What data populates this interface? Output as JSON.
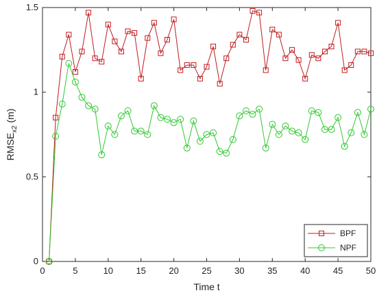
{
  "chart_data": {
    "type": "line",
    "xlabel": "Time t",
    "ylabel": {
      "base": "RMSE",
      "sub": "x2",
      "unit": " (m)"
    },
    "xlim": [
      0,
      50
    ],
    "ylim": [
      0,
      1.5
    ],
    "x_ticks": [
      0,
      5,
      10,
      15,
      20,
      25,
      30,
      35,
      40,
      45,
      50
    ],
    "y_ticks": [
      0,
      0.5,
      1,
      1.5
    ],
    "y_tick_labels": [
      "0",
      "0.5",
      "1",
      "1.5"
    ],
    "grid": false,
    "legend_position": "bottom-right",
    "x": [
      1,
      2,
      3,
      4,
      5,
      6,
      7,
      8,
      9,
      10,
      11,
      12,
      13,
      14,
      15,
      16,
      17,
      18,
      19,
      20,
      21,
      22,
      23,
      24,
      25,
      26,
      27,
      28,
      29,
      30,
      31,
      32,
      33,
      34,
      35,
      36,
      37,
      38,
      39,
      40,
      41,
      42,
      43,
      44,
      45,
      46,
      47,
      48,
      49,
      50
    ],
    "series": [
      {
        "name": "BPF",
        "color": "#c0181c",
        "marker": "square",
        "values": [
          0.0,
          0.85,
          1.21,
          1.34,
          1.12,
          1.24,
          1.47,
          1.2,
          1.18,
          1.4,
          1.3,
          1.24,
          1.36,
          1.35,
          1.08,
          1.32,
          1.41,
          1.23,
          1.31,
          1.43,
          1.13,
          1.16,
          1.16,
          1.08,
          1.15,
          1.27,
          1.05,
          1.2,
          1.28,
          1.34,
          1.31,
          1.48,
          1.47,
          1.13,
          1.37,
          1.34,
          1.2,
          1.25,
          1.19,
          1.08,
          1.22,
          1.2,
          1.24,
          1.27,
          1.41,
          1.13,
          1.16,
          1.24,
          1.24,
          1.23
        ]
      },
      {
        "name": "NPF",
        "color": "#2ec82e",
        "marker": "circle",
        "values": [
          0.0,
          0.74,
          0.93,
          1.17,
          1.06,
          0.97,
          0.92,
          0.9,
          0.63,
          0.8,
          0.75,
          0.86,
          0.89,
          0.77,
          0.77,
          0.75,
          0.92,
          0.85,
          0.84,
          0.82,
          0.84,
          0.67,
          0.83,
          0.71,
          0.75,
          0.76,
          0.65,
          0.64,
          0.72,
          0.86,
          0.89,
          0.87,
          0.9,
          0.67,
          0.81,
          0.75,
          0.8,
          0.77,
          0.76,
          0.72,
          0.89,
          0.88,
          0.78,
          0.78,
          0.85,
          0.68,
          0.76,
          0.88,
          0.75,
          0.9
        ]
      }
    ]
  }
}
